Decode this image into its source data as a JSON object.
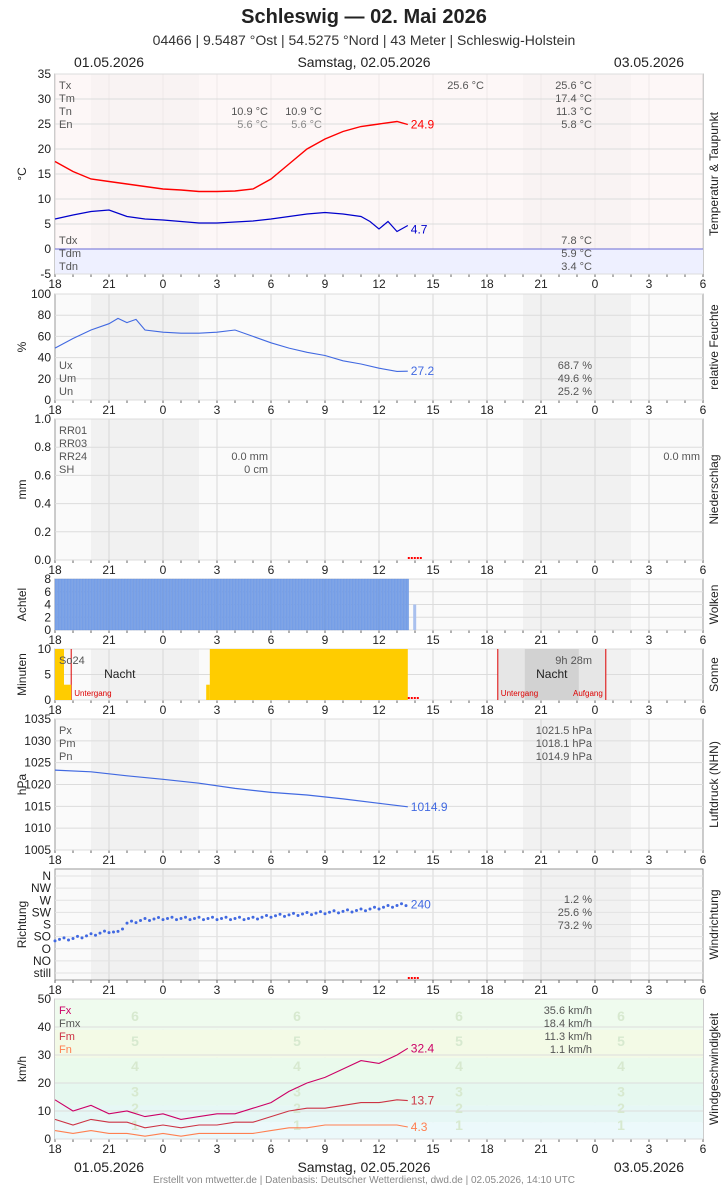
{
  "header": {
    "title": "Schleswig  —  02. Mai 2026",
    "subtitle": "04466  |  9.5487 °Ost  |  54.5275 °Nord  |  43 Meter  |  Schleswig-Holstein",
    "date_left": "01.05.2026",
    "date_center": "Samstag, 02.05.2026",
    "date_right": "03.05.2026"
  },
  "footer": "Erstellt von mtwetter.de | Datenbasis: Deutscher Wetterdienst, dwd.de | 02.05.2026, 14:10 UTC",
  "x_ticks": [
    "18",
    "21",
    "0",
    "3",
    "6",
    "9",
    "12",
    "15",
    "18",
    "21",
    "0",
    "3",
    "6"
  ],
  "colors": {
    "temp": "#ff0000",
    "dew": "#0000cc",
    "humidity": "#4169e1",
    "clouds": "#7ba3e8",
    "sun": "#ffcc00",
    "fx": "#cc0066",
    "fm": "#cc3344",
    "fn": "#ff7f50",
    "precip_marker": "#ff0000"
  },
  "chart_data": [
    {
      "name": "temperature",
      "type": "line",
      "ylabel": "°C",
      "side_label": "Temperatur & Taupunkt",
      "ylim": [
        -5,
        35
      ],
      "yticks": [
        "35",
        "30",
        "25",
        "20",
        "15",
        "10",
        "5",
        "0",
        "-5"
      ],
      "legend": [
        "Tx",
        "Tm",
        "Tn",
        "En"
      ],
      "legend_dew": [
        "Tdx",
        "Tdm",
        "Tdn"
      ],
      "stats_mid": [
        [
          "10.9 °C",
          "10.9 °C"
        ],
        [
          "5.6 °C",
          "5.6 °C"
        ]
      ],
      "stats_today_tx": "25.6 °C",
      "stats_right": [
        "25.6 °C",
        "17.4 °C",
        "11.3 °C",
        "5.8 °C"
      ],
      "stats_dew_right": [
        "7.8 °C",
        "5.9 °C",
        "3.4 °C"
      ],
      "current_temp": "24.9",
      "current_dew": "4.7",
      "series": [
        {
          "name": "Temperatur",
          "x": [
            18,
            19,
            20,
            21,
            22,
            23,
            24,
            25,
            26,
            27,
            28,
            29,
            30,
            31,
            32,
            33,
            34,
            35,
            36,
            37,
            37.6
          ],
          "values": [
            17.5,
            15.5,
            14,
            13.5,
            13,
            12.5,
            12,
            11.8,
            11.5,
            11.5,
            11.6,
            12,
            14,
            17,
            20,
            22,
            23.5,
            24.5,
            25,
            25.5,
            24.9
          ]
        },
        {
          "name": "Taupunkt",
          "x": [
            18,
            19,
            20,
            21,
            22,
            23,
            24,
            25,
            26,
            27,
            28,
            29,
            30,
            31,
            32,
            33,
            34,
            35,
            35.5,
            36,
            36.5,
            37,
            37.6
          ],
          "values": [
            6,
            6.8,
            7.5,
            7.8,
            6.5,
            6,
            5.8,
            5.5,
            5.2,
            5.2,
            5.4,
            5.6,
            6,
            6.5,
            7,
            7.3,
            7,
            6.5,
            5.5,
            4,
            5.5,
            3.5,
            4.7
          ]
        }
      ]
    },
    {
      "name": "humidity",
      "type": "line",
      "ylabel": "%",
      "side_label": "relative Feuchte",
      "ylim": [
        0,
        100
      ],
      "yticks": [
        "100",
        "80",
        "60",
        "40",
        "20",
        "0"
      ],
      "legend": [
        "Ux",
        "Um",
        "Un"
      ],
      "stats_right": [
        "68.7 %",
        "49.6 %",
        "25.2 %"
      ],
      "current": "27.2",
      "series": [
        {
          "name": "Feuchte",
          "x": [
            18,
            19,
            20,
            21,
            21.5,
            22,
            22.5,
            23,
            24,
            25,
            26,
            27,
            28,
            29,
            30,
            31,
            32,
            33,
            34,
            35,
            36,
            37,
            37.6
          ],
          "values": [
            49,
            58,
            66,
            72,
            77,
            73,
            76,
            66,
            64,
            63,
            63,
            64,
            66,
            60,
            54,
            49,
            45,
            42,
            37,
            34,
            30,
            27,
            27.2
          ]
        }
      ]
    },
    {
      "name": "precipitation",
      "type": "bar",
      "ylabel": "mm",
      "side_label": "Niederschlag",
      "ylim": [
        0,
        1.0
      ],
      "yticks": [
        "1.0",
        "0.8",
        "0.6",
        "0.4",
        "0.2",
        "0.0"
      ],
      "legend": [
        "RR01",
        "RR03",
        "RR24",
        "SH"
      ],
      "stats_mid": [
        "0.0 mm",
        "0 cm"
      ],
      "stats_right": "0.0 mm",
      "values": []
    },
    {
      "name": "clouds",
      "type": "bar",
      "ylabel": "Achtel",
      "side_label": "Wolken",
      "ylim": [
        0,
        8
      ],
      "yticks": [
        "8",
        "6",
        "4",
        "2",
        "0"
      ],
      "x_range": [
        18,
        37.6
      ],
      "value": 8
    },
    {
      "name": "sunshine",
      "type": "bar",
      "ylabel": "Minuten",
      "side_label": "Sonne",
      "ylim": [
        0,
        10
      ],
      "yticks": [
        "10",
        "5",
        "0"
      ],
      "legend": "So24",
      "day_length": "9h 28m",
      "night_label": "Nacht",
      "sunset_label": "Untergang",
      "sunrise_label": "Aufgang",
      "sun_blocks": [
        {
          "from": 18,
          "to": 18.5,
          "value": 10
        },
        {
          "from": 18.5,
          "to": 18.9,
          "value": 3
        },
        {
          "from": 26.4,
          "to": 26.6,
          "value": 3
        },
        {
          "from": 26.6,
          "to": 37.6,
          "value": 10
        }
      ]
    },
    {
      "name": "pressure",
      "type": "line",
      "ylabel": "hPa",
      "side_label": "Luftdruck (NHN)",
      "ylim": [
        1005,
        1035
      ],
      "yticks": [
        "1035",
        "1030",
        "1025",
        "1020",
        "1015",
        "1010",
        "1005"
      ],
      "legend": [
        "Px",
        "Pm",
        "Pn"
      ],
      "stats_right": [
        "1021.5 hPa",
        "1018.1 hPa",
        "1014.9 hPa"
      ],
      "current": "1014.9",
      "series": [
        {
          "name": "Luftdruck",
          "x": [
            18,
            20,
            22,
            24,
            26,
            28,
            30,
            32,
            34,
            36,
            37.6
          ],
          "values": [
            1023.3,
            1022.9,
            1022.0,
            1021.2,
            1020.3,
            1019.1,
            1018.2,
            1017.6,
            1016.7,
            1015.7,
            1014.9
          ]
        }
      ]
    },
    {
      "name": "wind_direction",
      "type": "scatter",
      "ylabel": "Richtung",
      "side_label": "Windrichtung",
      "yticks": [
        "N",
        "NW",
        "W",
        "SW",
        "S",
        "SO",
        "O",
        "NO",
        "still"
      ],
      "stats_right": [
        "1.2 %",
        "25.6 %",
        "73.2 %"
      ],
      "current": "240",
      "series": [
        {
          "name": "Richtung",
          "x": [
            18,
            19,
            20,
            21,
            21.5,
            22,
            23,
            24,
            25,
            26,
            27,
            28,
            29,
            30,
            31,
            32,
            33,
            34,
            35,
            36,
            37,
            37.6
          ],
          "values": [
            90,
            95,
            110,
            125,
            120,
            160,
            175,
            180,
            180,
            180,
            180,
            180,
            180,
            190,
            195,
            200,
            205,
            210,
            215,
            225,
            235,
            240
          ]
        }
      ]
    },
    {
      "name": "wind_speed",
      "type": "line",
      "ylabel": "km/h",
      "side_label": "Windgeschwindigkeit",
      "ylim": [
        0,
        50
      ],
      "yticks": [
        "50",
        "40",
        "30",
        "20",
        "10",
        "0"
      ],
      "legend": [
        "Fx",
        "Fmx",
        "Fm",
        "Fn"
      ],
      "stats_right": [
        "35.6 km/h",
        "18.4 km/h",
        "11.3 km/h",
        "1.1 km/h"
      ],
      "bft_labels": [
        "6",
        "5",
        "4",
        "3",
        "2",
        "1"
      ],
      "current": [
        "32.4",
        "13.7",
        "4.3"
      ],
      "series": [
        {
          "name": "Fx",
          "x": [
            18,
            19,
            20,
            21,
            22,
            23,
            24,
            25,
            26,
            27,
            28,
            29,
            30,
            31,
            32,
            33,
            34,
            35,
            36,
            37,
            37.6
          ],
          "values": [
            14,
            10,
            12,
            9,
            10,
            8,
            9,
            7,
            8,
            9,
            9,
            11,
            13,
            17,
            20,
            22,
            25,
            28,
            27,
            30,
            32.4
          ]
        },
        {
          "name": "Fm",
          "x": [
            18,
            19,
            20,
            21,
            22,
            23,
            24,
            25,
            26,
            27,
            28,
            29,
            30,
            31,
            32,
            33,
            34,
            35,
            36,
            37,
            37.6
          ],
          "values": [
            7,
            5,
            7,
            6,
            6,
            4,
            5,
            4,
            5,
            5,
            6,
            6,
            8,
            10,
            11,
            11,
            12,
            13,
            13,
            14,
            13.7
          ]
        },
        {
          "name": "Fn",
          "x": [
            18,
            19,
            20,
            21,
            22,
            23,
            24,
            25,
            26,
            27,
            28,
            29,
            30,
            31,
            32,
            33,
            34,
            35,
            36,
            37,
            37.6
          ],
          "values": [
            3,
            2,
            3,
            2,
            2,
            1,
            2,
            1,
            2,
            2,
            2,
            2,
            3,
            4,
            4,
            5,
            5,
            5,
            5,
            5,
            4.3
          ]
        }
      ]
    }
  ]
}
